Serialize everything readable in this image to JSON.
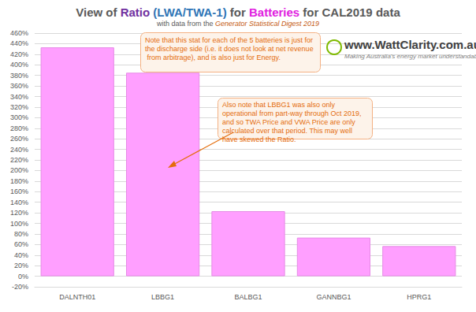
{
  "chart_data": {
    "type": "bar",
    "title": "View of Ratio (LWA/TWA-1) for Batteries for CAL2019 data",
    "subtitle": "with data from the Generator Statistical Digest 2019",
    "categories": [
      "DALNTH01",
      "LBBG1",
      "BALBG1",
      "GANNBG1",
      "HPRG1"
    ],
    "values": [
      433,
      385,
      123,
      73,
      57
    ],
    "color": "#ff9fff",
    "ylim": [
      -20,
      460
    ],
    "yticks": [
      {
        "value": -20,
        "label": "-20%"
      },
      {
        "value": 0,
        "label": "0%"
      },
      {
        "value": 20,
        "label": "20%"
      },
      {
        "value": 40,
        "label": "40%"
      },
      {
        "value": 60,
        "label": "60%"
      },
      {
        "value": 80,
        "label": "80%"
      },
      {
        "value": 100,
        "label": "100%"
      },
      {
        "value": 120,
        "label": "120%"
      },
      {
        "value": 140,
        "label": "140%"
      },
      {
        "value": 160,
        "label": "160%"
      },
      {
        "value": 180,
        "label": "180%"
      },
      {
        "value": 200,
        "label": "200%"
      },
      {
        "value": 220,
        "label": "220%"
      },
      {
        "value": 240,
        "label": "240%"
      },
      {
        "value": 260,
        "label": "260%"
      },
      {
        "value": 280,
        "label": "280%"
      },
      {
        "value": 300,
        "label": "300%"
      },
      {
        "value": 320,
        "label": "320%"
      },
      {
        "value": 340,
        "label": "340%"
      },
      {
        "value": 360,
        "label": "360%"
      },
      {
        "value": 380,
        "label": "380%"
      },
      {
        "value": 400,
        "label": "400%"
      },
      {
        "value": 420,
        "label": "420%"
      },
      {
        "value": 440,
        "label": "440%"
      },
      {
        "value": 460,
        "label": "460%"
      }
    ],
    "grid": true,
    "annotations": [
      "Note that this stat for each of the 5 batteries is just for the discharge side (i.e. it does not look at net revenue from arbitrage), and is also just for Energy.",
      "Also note that LBBG1 was also only operational from part-way through Oct 2019, and so TWA Price and VWA Price are only calculated over that period. This may well have skewed the Ratio.",
      "www.WattClarity.com.au",
      "Making Australia's energy market understandable"
    ]
  }
}
